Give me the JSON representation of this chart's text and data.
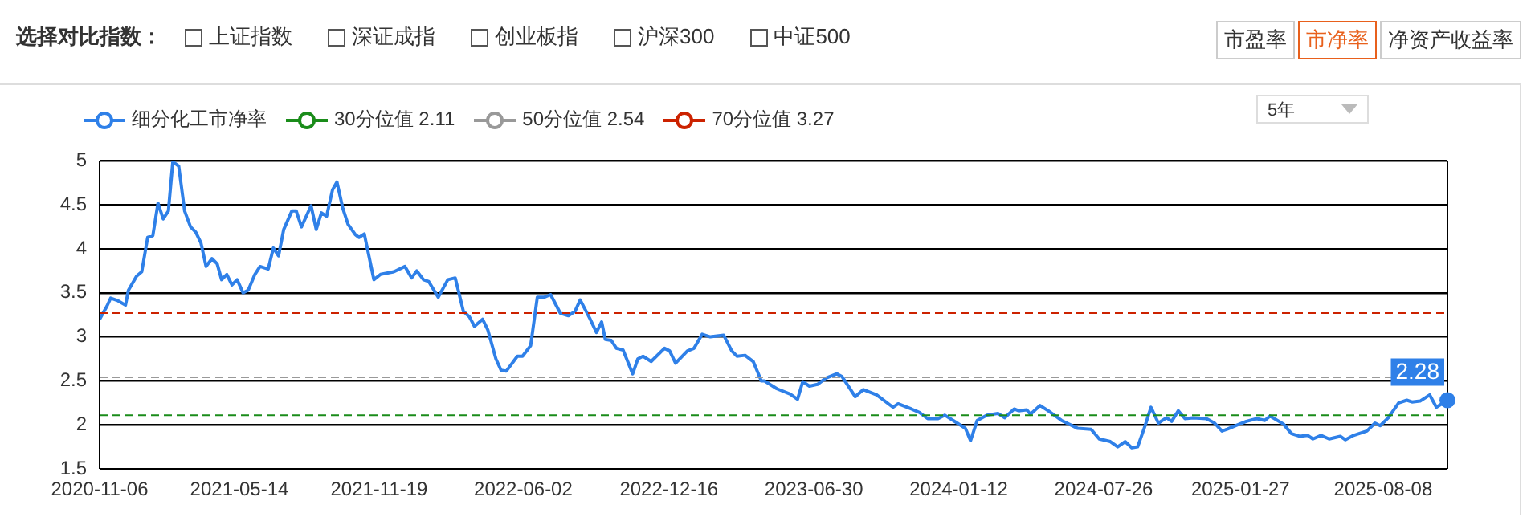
{
  "chart_data": {
    "type": "line",
    "annotations": [
      "选择对比指数：",
      "上证指数",
      "深证成指",
      "创业板指",
      "沪深300",
      "中证500",
      "市盈率",
      "市净率",
      "净资产收益率",
      "5年",
      {
        "text": "2.28",
        "x": "2025-11-03",
        "y": 2.28
      }
    ],
    "x": [
      "2020-11-06",
      "2020-11-16",
      "2020-11-21",
      "2020-12-01",
      "2020-12-11",
      "2020-12-15",
      "2020-12-26",
      "2021-01-02",
      "2021-01-10",
      "2021-01-17",
      "2021-01-24",
      "2021-01-31",
      "2021-02-07",
      "2021-02-13",
      "2021-02-21",
      "2021-03-01",
      "2021-03-09",
      "2021-03-16",
      "2021-03-23",
      "2021-03-30",
      "2021-04-07",
      "2021-04-14",
      "2021-04-20",
      "2021-04-27",
      "2021-05-04",
      "2021-05-11",
      "2021-05-19",
      "2021-05-26",
      "2021-06-04",
      "2021-06-11",
      "2021-06-22",
      "2021-06-29",
      "2021-07-06",
      "2021-07-13",
      "2021-07-24",
      "2021-07-30",
      "2021-08-06",
      "2021-08-19",
      "2021-08-26",
      "2021-09-02",
      "2021-09-09",
      "2021-09-17",
      "2021-09-23",
      "2021-10-01",
      "2021-10-08",
      "2021-10-18",
      "2021-10-23",
      "2021-10-30",
      "2021-11-12",
      "2021-11-21",
      "2021-12-09",
      "2021-12-24",
      "2022-01-02",
      "2022-01-09",
      "2022-01-18",
      "2022-01-25",
      "2022-02-07",
      "2022-02-20",
      "2022-03-02",
      "2022-03-13",
      "2022-03-21",
      "2022-03-28",
      "2022-04-08",
      "2022-04-15",
      "2022-04-26",
      "2022-05-03",
      "2022-05-10",
      "2022-05-25",
      "2022-06-01",
      "2022-06-12",
      "2022-06-21",
      "2022-06-30",
      "2022-07-09",
      "2022-07-22",
      "2022-08-02",
      "2022-08-11",
      "2022-08-18",
      "2022-08-31",
      "2022-09-09",
      "2022-09-16",
      "2022-09-21",
      "2022-09-29",
      "2022-10-06",
      "2022-10-15",
      "2022-10-28",
      "2022-11-04",
      "2022-11-11",
      "2022-11-22",
      "2022-12-10",
      "2022-12-17",
      "2022-12-25",
      "2023-01-10",
      "2023-01-19",
      "2023-01-30",
      "2023-02-10",
      "2023-02-28",
      "2023-03-11",
      "2023-03-18",
      "2023-03-29",
      "2023-04-09",
      "2023-04-20",
      "2023-04-24",
      "2023-05-11",
      "2023-05-29",
      "2023-06-08",
      "2023-06-15",
      "2023-06-24",
      "2023-07-05",
      "2023-07-16",
      "2023-07-31",
      "2023-08-07",
      "2023-08-25",
      "2023-09-05",
      "2023-09-23",
      "2023-10-15",
      "2023-10-22",
      "2023-11-09",
      "2023-11-20",
      "2023-12-01",
      "2023-12-15",
      "2023-12-24",
      "2024-01-10",
      "2024-01-21",
      "2024-01-28",
      "2024-02-06",
      "2024-02-19",
      "2024-03-05",
      "2024-03-14",
      "2024-03-27",
      "2024-04-02",
      "2024-04-13",
      "2024-04-18",
      "2024-05-01",
      "2024-05-12",
      "2024-05-30",
      "2024-06-21",
      "2024-07-09",
      "2024-07-20",
      "2024-08-04",
      "2024-08-14",
      "2024-08-24",
      "2024-09-02",
      "2024-09-10",
      "2024-09-20",
      "2024-09-28",
      "2024-10-08",
      "2024-10-19",
      "2024-10-26",
      "2024-11-04",
      "2024-11-13",
      "2024-11-24",
      "2024-12-12",
      "2024-12-23",
      "2025-01-02",
      "2025-01-09",
      "2025-01-20",
      "2025-02-04",
      "2025-02-18",
      "2025-03-01",
      "2025-03-08",
      "2025-03-26",
      "2025-04-06",
      "2025-04-17",
      "2025-04-28",
      "2025-05-05",
      "2025-05-16",
      "2025-05-27",
      "2025-06-11",
      "2025-06-18",
      "2025-06-29",
      "2025-07-17",
      "2025-07-28",
      "2025-08-04",
      "2025-08-15",
      "2025-08-29",
      "2025-09-09",
      "2025-09-16",
      "2025-09-27",
      "2025-10-10",
      "2025-10-19",
      "2025-11-03"
    ],
    "series": [
      {
        "name": "细分化工市净率",
        "color": "#2f80e8",
        "values": [
          3.2,
          3.35,
          3.44,
          3.41,
          3.36,
          3.53,
          3.69,
          3.74,
          4.13,
          4.15,
          4.52,
          4.34,
          4.43,
          4.99,
          4.94,
          4.43,
          4.25,
          4.19,
          4.07,
          3.8,
          3.89,
          3.83,
          3.65,
          3.71,
          3.59,
          3.65,
          3.5,
          3.53,
          3.71,
          3.8,
          3.77,
          4.01,
          3.92,
          4.22,
          4.43,
          4.43,
          4.25,
          4.49,
          4.22,
          4.41,
          4.37,
          4.67,
          4.76,
          4.46,
          4.28,
          4.16,
          4.13,
          4.17,
          3.65,
          3.71,
          3.74,
          3.8,
          3.67,
          3.75,
          3.65,
          3.63,
          3.45,
          3.65,
          3.67,
          3.29,
          3.23,
          3.12,
          3.2,
          3.08,
          2.75,
          2.62,
          2.61,
          2.78,
          2.78,
          2.9,
          3.45,
          3.45,
          3.48,
          3.27,
          3.24,
          3.29,
          3.42,
          3.21,
          3.05,
          3.17,
          2.97,
          2.96,
          2.87,
          2.85,
          2.58,
          2.75,
          2.78,
          2.72,
          2.87,
          2.84,
          2.7,
          2.84,
          2.87,
          3.03,
          3.0,
          3.02,
          2.84,
          2.78,
          2.79,
          2.72,
          2.5,
          2.5,
          2.41,
          2.35,
          2.29,
          2.49,
          2.44,
          2.46,
          2.53,
          2.58,
          2.55,
          2.32,
          2.4,
          2.34,
          2.2,
          2.24,
          2.18,
          2.14,
          2.07,
          2.07,
          2.11,
          2.02,
          1.96,
          1.82,
          2.05,
          2.11,
          2.13,
          2.08,
          2.18,
          2.16,
          2.17,
          2.12,
          2.22,
          2.16,
          2.05,
          1.96,
          1.95,
          1.84,
          1.81,
          1.75,
          1.81,
          1.74,
          1.75,
          1.99,
          2.2,
          2.02,
          2.08,
          2.04,
          2.16,
          2.07,
          2.08,
          2.07,
          2.02,
          1.93,
          1.95,
          1.99,
          2.04,
          2.07,
          2.05,
          2.1,
          2.01,
          1.9,
          1.87,
          1.88,
          1.84,
          1.88,
          1.84,
          1.87,
          1.83,
          1.88,
          1.93,
          2.02,
          1.99,
          2.08,
          2.25,
          2.28,
          2.26,
          2.27,
          2.34,
          2.2,
          2.28
        ]
      }
    ],
    "ref_lines": [
      {
        "axis": "y",
        "value": 2.11,
        "label": "30分位值 2.11",
        "color": "#1a8c1a",
        "line_style": "dashed"
      },
      {
        "axis": "y",
        "value": 2.54,
        "label": "50分位值 2.54",
        "color": "#999999",
        "line_style": "dashed"
      },
      {
        "axis": "y",
        "value": 3.27,
        "label": "70分位值 3.27",
        "color": "#cc2200",
        "line_style": "dashed"
      }
    ],
    "xlim": [
      "2020-11-06",
      "2025-11-03"
    ],
    "xticks": [
      {
        "value": "2020-11-06",
        "label": "2020-11-06"
      },
      {
        "value": "2021-05-14",
        "label": "2021-05-14"
      },
      {
        "value": "2021-11-19",
        "label": "2021-11-19"
      },
      {
        "value": "2022-06-02",
        "label": "2022-06-02"
      },
      {
        "value": "2022-12-16",
        "label": "2022-12-16"
      },
      {
        "value": "2023-06-30",
        "label": "2023-06-30"
      },
      {
        "value": "2024-01-12",
        "label": "2024-01-12"
      },
      {
        "value": "2024-07-26",
        "label": "2024-07-26"
      },
      {
        "value": "2025-01-27",
        "label": "2025-01-27"
      },
      {
        "value": "2025-08-08",
        "label": "2025-08-08"
      }
    ],
    "ylim": [
      1.5,
      5
    ],
    "yticks": [
      1.5,
      2,
      2.5,
      3,
      3.5,
      4,
      4.5,
      5
    ],
    "grid": "y",
    "legend": "top left",
    "marker": "none",
    "line_style": "solid"
  }
}
